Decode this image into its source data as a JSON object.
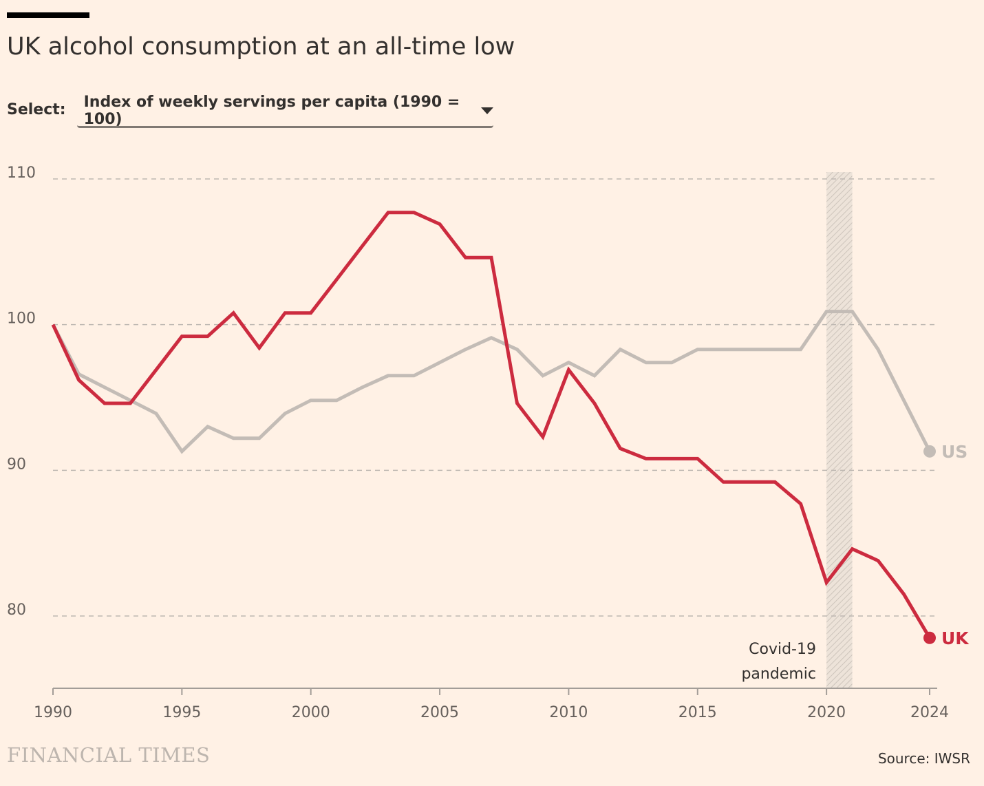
{
  "title": "UK alcohol consumption at an all-time low",
  "select": {
    "label": "Select:",
    "value": "Index of weekly servings per capita (1990 = 100)"
  },
  "brand": "FINANCIAL TIMES",
  "source": "Source: IWSR",
  "annotation": {
    "line1": "Covid-19",
    "line2": "pandemic",
    "x_start": 2020,
    "x_end": 2021
  },
  "colors": {
    "uk": "#CC2B3F",
    "us": "#C3BCB6",
    "background": "#FFF1E5",
    "grid": "#BEB8B2",
    "axis": "#A39D98"
  },
  "chart_data": {
    "type": "line",
    "title": "UK alcohol consumption at an all-time low",
    "xlabel": "",
    "ylabel": "Index of weekly servings per capita (1990 = 100)",
    "x": [
      1990,
      1991,
      1992,
      1993,
      1994,
      1995,
      1996,
      1997,
      1998,
      1999,
      2000,
      2001,
      2002,
      2003,
      2004,
      2005,
      2006,
      2007,
      2008,
      2009,
      2010,
      2011,
      2012,
      2013,
      2014,
      2015,
      2016,
      2017,
      2018,
      2019,
      2020,
      2021,
      2022,
      2023,
      2024
    ],
    "xlim": [
      1990,
      2024
    ],
    "ylim": [
      75,
      112
    ],
    "xticks": [
      1990,
      1995,
      2000,
      2005,
      2010,
      2015,
      2020,
      2024
    ],
    "yticks": [
      80,
      90,
      100,
      110
    ],
    "grid": true,
    "series": [
      {
        "name": "UK",
        "color": "#CC2B3F",
        "values": [
          100,
          96.2,
          94.6,
          94.6,
          96.9,
          99.2,
          99.2,
          100.8,
          98.4,
          100.8,
          100.8,
          103.1,
          105.4,
          107.7,
          107.7,
          106.9,
          104.6,
          104.6,
          94.6,
          92.3,
          96.9,
          94.6,
          91.5,
          90.8,
          90.8,
          90.8,
          89.2,
          89.2,
          89.2,
          87.7,
          82.3,
          84.6,
          83.8,
          81.5,
          78.5
        ]
      },
      {
        "name": "US",
        "color": "#C3BCB6",
        "values": [
          100,
          96.6,
          95.7,
          94.8,
          93.9,
          91.3,
          93.0,
          92.2,
          92.2,
          93.9,
          94.8,
          94.8,
          95.7,
          96.5,
          96.5,
          97.4,
          98.3,
          99.1,
          98.3,
          96.5,
          97.4,
          96.5,
          98.3,
          97.4,
          97.4,
          98.3,
          98.3,
          98.3,
          98.3,
          98.3,
          100.9,
          100.9,
          98.3,
          94.8,
          91.3
        ]
      }
    ]
  }
}
